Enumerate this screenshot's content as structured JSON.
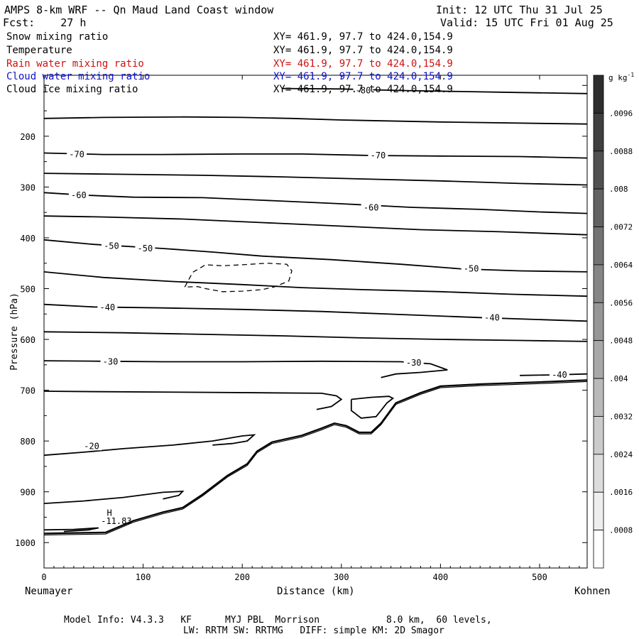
{
  "header": {
    "title": "AMPS 8-km WRF -- Qn Maud Land Coast window",
    "init": "Init: 12 UTC Thu 31 Jul 25",
    "fcst": "Fcst:    27 h",
    "valid": "Valid: 15 UTC Fri 01 Aug 25"
  },
  "fields": [
    {
      "name": "Snow mixing ratio",
      "xy": "XY= 461.9, 97.7 to 424.0,154.9",
      "color": "#000000"
    },
    {
      "name": "Temperature",
      "xy": "XY= 461.9, 97.7 to 424.0,154.9",
      "color": "#000000"
    },
    {
      "name": "Rain water mixing ratio",
      "xy": "XY= 461.9, 97.7 to 424.0,154.9",
      "color": "#d01010"
    },
    {
      "name": "Cloud water mixing ratio",
      "xy": "XY= 461.9, 97.7 to 424.0,154.9",
      "color": "#1010c0"
    },
    {
      "name": "Cloud ice mixing ratio",
      "xy": "XY= 461.9, 97.7 to 424.0,154.9",
      "color": "#000000"
    }
  ],
  "footer": {
    "line1": "Model Info: V4.3.3   KF      MYJ PBL  Morrison            8.0 km,  60 levels,",
    "line2": "LW: RRTM SW: RRTMG   DIFF: simple KM: 2D Smagor"
  },
  "chart_data": {
    "type": "contour",
    "title": "AMPS 8-km WRF -- Qn Maud Land Coast window",
    "xlabel": "Distance (km)",
    "ylabel": "Pressure (hPa)",
    "xlim": [
      0,
      548
    ],
    "ylim": [
      1050,
      80
    ],
    "x_end_labels": {
      "left": "Neumayer",
      "right": "Kohnen"
    },
    "x_ticks": [
      0,
      100,
      200,
      300,
      400,
      500
    ],
    "y_ticks": [
      200,
      300,
      400,
      500,
      600,
      700,
      800,
      900,
      1000
    ],
    "y_tick_labels": [
      "",
      "200",
      "300",
      "400",
      "500",
      "600",
      "700",
      "800",
      "900",
      "1000"
    ],
    "colorbar": {
      "units": "g kg",
      "units_exp": "-1",
      "ticks": [
        ".0096",
        ".0088",
        ".008",
        ".0072",
        ".0064",
        ".0056",
        ".0048",
        ".004",
        ".0032",
        ".0024",
        ".0016",
        ".0008"
      ]
    },
    "temperature_contours": [
      {
        "label": "-80",
        "labels_at": [
          [
            322,
            110
          ]
        ],
        "points": [
          [
            240,
            106
          ],
          [
            300,
            107
          ],
          [
            360,
            110
          ],
          [
            420,
            112
          ],
          [
            480,
            114
          ],
          [
            548,
            116
          ]
        ]
      },
      {
        "label": "",
        "labels_at": [],
        "points": [
          [
            0,
            165
          ],
          [
            60,
            163
          ],
          [
            140,
            162
          ],
          [
            200,
            163
          ],
          [
            250,
            165
          ],
          [
            300,
            168
          ],
          [
            400,
            172
          ],
          [
            548,
            176
          ]
        ]
      },
      {
        "label": "-70",
        "labels_at": [
          [
            33,
            236
          ],
          [
            337,
            238
          ]
        ],
        "points": [
          [
            0,
            233
          ],
          [
            60,
            236
          ],
          [
            120,
            236
          ],
          [
            200,
            235
          ],
          [
            260,
            235
          ],
          [
            330,
            238
          ],
          [
            400,
            239
          ],
          [
            480,
            240
          ],
          [
            548,
            243
          ]
        ]
      },
      {
        "label": "",
        "labels_at": [],
        "points": [
          [
            0,
            273
          ],
          [
            80,
            275
          ],
          [
            160,
            277
          ],
          [
            240,
            280
          ],
          [
            320,
            284
          ],
          [
            400,
            288
          ],
          [
            480,
            293
          ],
          [
            548,
            296
          ]
        ]
      },
      {
        "label": "-60",
        "labels_at": [
          [
            35,
            316
          ],
          [
            330,
            341
          ]
        ],
        "points": [
          [
            0,
            311
          ],
          [
            40,
            316
          ],
          [
            90,
            320
          ],
          [
            160,
            321
          ],
          [
            220,
            326
          ],
          [
            300,
            333
          ],
          [
            370,
            340
          ],
          [
            440,
            344
          ],
          [
            500,
            349
          ],
          [
            548,
            352
          ]
        ]
      },
      {
        "label": "",
        "labels_at": [],
        "points": [
          [
            0,
            357
          ],
          [
            60,
            359
          ],
          [
            140,
            363
          ],
          [
            220,
            370
          ],
          [
            300,
            377
          ],
          [
            380,
            384
          ],
          [
            460,
            388
          ],
          [
            548,
            394
          ]
        ]
      },
      {
        "label": "-50",
        "labels_at": [
          [
            68,
            416
          ],
          [
            102,
            421
          ],
          [
            431,
            461
          ]
        ],
        "points": [
          [
            0,
            404
          ],
          [
            50,
            413
          ],
          [
            120,
            421
          ],
          [
            170,
            428
          ],
          [
            220,
            436
          ],
          [
            290,
            443
          ],
          [
            360,
            452
          ],
          [
            420,
            461
          ],
          [
            480,
            465
          ],
          [
            548,
            467
          ]
        ]
      },
      {
        "label": "",
        "labels_at": [],
        "points": [
          [
            0,
            467
          ],
          [
            60,
            478
          ],
          [
            130,
            486
          ],
          [
            200,
            492
          ],
          [
            260,
            498
          ],
          [
            320,
            502
          ],
          [
            400,
            506
          ],
          [
            470,
            511
          ],
          [
            548,
            515
          ]
        ]
      },
      {
        "label": "-40",
        "labels_at": [
          [
            64,
            537
          ],
          [
            452,
            557
          ]
        ],
        "points": [
          [
            0,
            531
          ],
          [
            50,
            536
          ],
          [
            120,
            538
          ],
          [
            200,
            541
          ],
          [
            280,
            545
          ],
          [
            360,
            551
          ],
          [
            440,
            557
          ],
          [
            500,
            561
          ],
          [
            548,
            564
          ]
        ]
      },
      {
        "label": "",
        "labels_at": [],
        "points": [
          [
            0,
            585
          ],
          [
            80,
            587
          ],
          [
            160,
            590
          ],
          [
            240,
            593
          ],
          [
            320,
            597
          ],
          [
            400,
            600
          ],
          [
            480,
            602
          ],
          [
            548,
            604
          ]
        ]
      },
      {
        "label": "-30",
        "labels_at": [
          [
            67,
            644
          ],
          [
            373,
            646
          ]
        ],
        "points": [
          [
            0,
            642
          ],
          [
            60,
            643
          ],
          [
            120,
            644
          ],
          [
            200,
            644
          ],
          [
            280,
            643
          ],
          [
            360,
            644
          ],
          [
            390,
            648
          ],
          [
            407,
            660
          ],
          [
            380,
            665
          ],
          [
            355,
            668
          ],
          [
            340,
            675
          ]
        ]
      },
      {
        "label": "",
        "labels_at": [],
        "points": [
          [
            0,
            702
          ],
          [
            60,
            703
          ],
          [
            140,
            704
          ],
          [
            220,
            705
          ],
          [
            280,
            706
          ],
          [
            295,
            711
          ],
          [
            300,
            718
          ],
          [
            290,
            732
          ],
          [
            275,
            738
          ]
        ]
      },
      {
        "label": "",
        "labels_at": [],
        "points": [
          [
            310,
            718
          ],
          [
            330,
            714
          ],
          [
            348,
            712
          ],
          [
            352,
            716
          ],
          [
            346,
            725
          ],
          [
            340,
            740
          ],
          [
            335,
            752
          ],
          [
            320,
            755
          ],
          [
            310,
            740
          ],
          [
            310,
            718
          ]
        ]
      },
      {
        "label": "-20",
        "labels_at": [
          [
            48,
            810
          ]
        ],
        "points": [
          [
            0,
            828
          ],
          [
            40,
            822
          ],
          [
            80,
            815
          ],
          [
            130,
            808
          ],
          [
            170,
            800
          ],
          [
            200,
            790
          ],
          [
            212,
            788
          ],
          [
            205,
            800
          ],
          [
            190,
            805
          ],
          [
            170,
            808
          ]
        ]
      },
      {
        "label": "",
        "labels_at": [],
        "points": [
          [
            0,
            923
          ],
          [
            40,
            918
          ],
          [
            80,
            911
          ],
          [
            120,
            901
          ],
          [
            140,
            899
          ],
          [
            136,
            907
          ],
          [
            120,
            914
          ]
        ]
      },
      {
        "label": "",
        "labels_at": [],
        "points": [
          [
            0,
            975
          ],
          [
            30,
            974
          ],
          [
            55,
            971
          ],
          [
            45,
            975
          ],
          [
            20,
            978
          ]
        ]
      },
      {
        "label": "-40",
        "labels_at": [
          [
            520,
            670
          ]
        ],
        "points": [
          [
            480,
            671
          ],
          [
            510,
            670
          ],
          [
            548,
            668
          ]
        ]
      }
    ],
    "cloud_ice_dashed_contour": {
      "points": [
        [
          142,
          497
        ],
        [
          150,
          468
        ],
        [
          163,
          453
        ],
        [
          180,
          455
        ],
        [
          200,
          453
        ],
        [
          225,
          450
        ],
        [
          245,
          452
        ],
        [
          250,
          465
        ],
        [
          247,
          485
        ],
        [
          232,
          497
        ],
        [
          220,
          502
        ],
        [
          200,
          505
        ],
        [
          180,
          506
        ],
        [
          163,
          500
        ],
        [
          155,
          496
        ],
        [
          142,
          497
        ]
      ]
    },
    "terrain_profile": {
      "points": [
        [
          0,
          982
        ],
        [
          30,
          981
        ],
        [
          62,
          980
        ],
        [
          90,
          957
        ],
        [
          120,
          940
        ],
        [
          140,
          931
        ],
        [
          160,
          905
        ],
        [
          185,
          868
        ],
        [
          205,
          845
        ],
        [
          215,
          820
        ],
        [
          230,
          802
        ],
        [
          260,
          789
        ],
        [
          280,
          775
        ],
        [
          293,
          765
        ],
        [
          305,
          770
        ],
        [
          318,
          783
        ],
        [
          330,
          783
        ],
        [
          340,
          765
        ],
        [
          355,
          725
        ],
        [
          380,
          705
        ],
        [
          400,
          692
        ],
        [
          440,
          688
        ],
        [
          500,
          684
        ],
        [
          548,
          680
        ]
      ]
    },
    "annotations": [
      {
        "text": "H",
        "x": 66,
        "y": 947
      },
      {
        "text": "-11.83",
        "x": 73,
        "y": 963
      }
    ]
  }
}
